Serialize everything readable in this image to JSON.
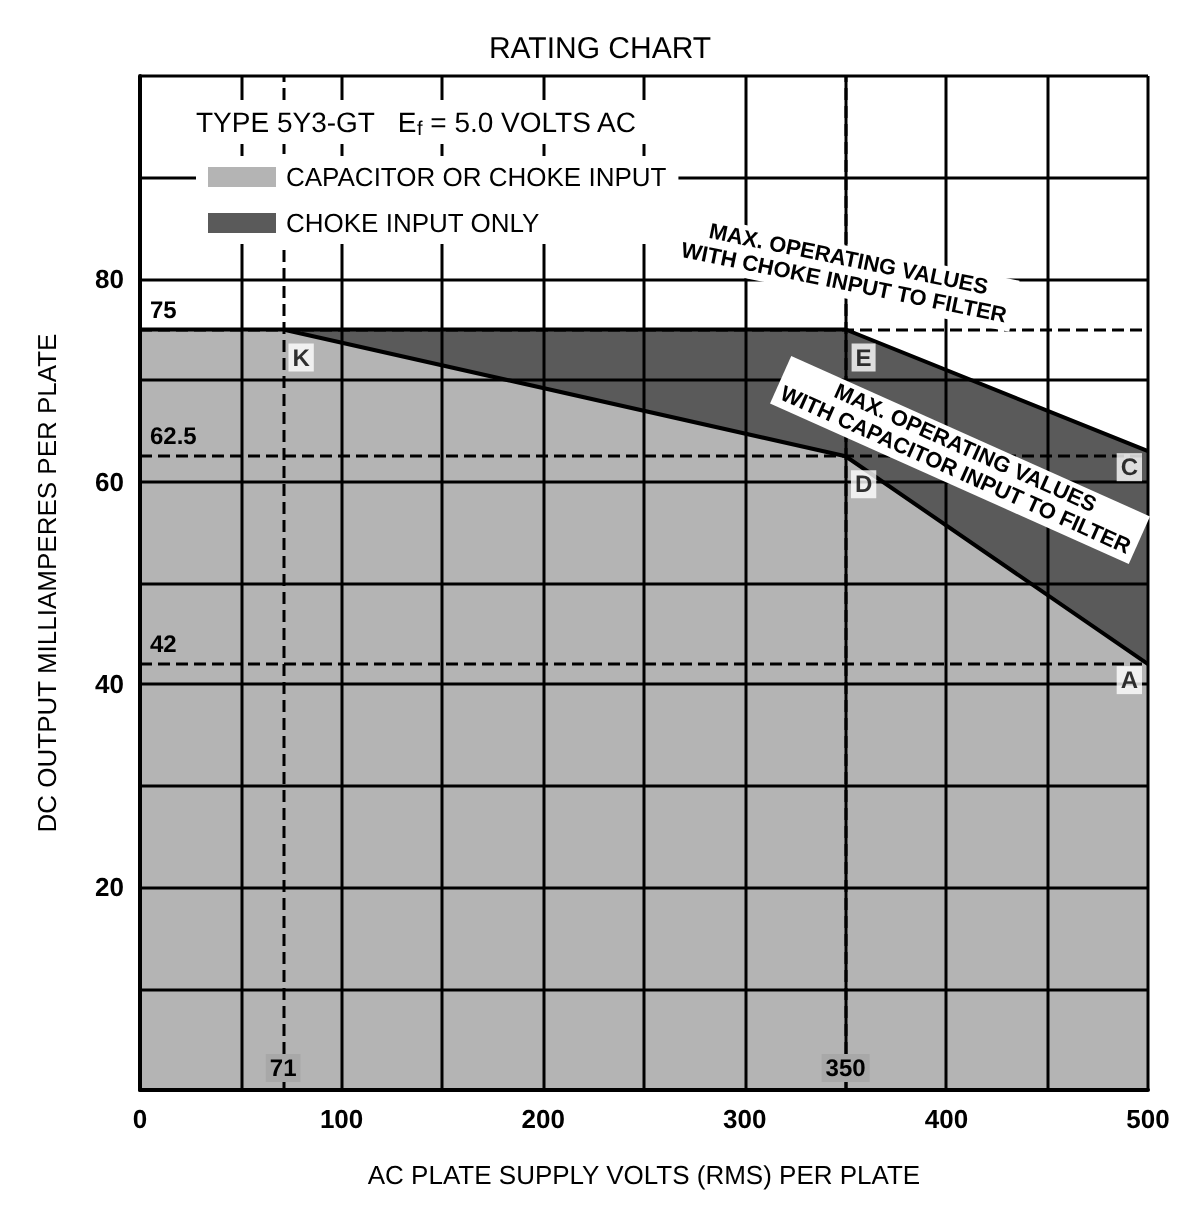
{
  "chart_data": {
    "type": "area",
    "title": "RATING CHART",
    "xlabel": "AC PLATE SUPPLY VOLTS (RMS) PER PLATE",
    "ylabel": "DC OUTPUT MILLIAMPERES PER PLATE",
    "legend_title": "TYPE 5Y3-GT   E$_{f}$ = 5.0 VOLTS AC",
    "series": [
      {
        "name": "CHOKE INPUT ONLY",
        "color": "#5a5a5a",
        "x": [
          71,
          350,
          500
        ],
        "values": [
          75,
          75,
          63
        ]
      },
      {
        "name": "CAPACITOR OR CHOKE INPUT",
        "color": "#b4b4b4",
        "x": [
          0,
          71,
          350,
          500
        ],
        "values": [
          75,
          75,
          62.5,
          42
        ]
      }
    ],
    "xlim": [
      0,
      500
    ],
    "xticks": [
      {
        "value": 0,
        "label": "0"
      },
      {
        "value": 50,
        "label": null
      },
      100,
      {
        "value": 150,
        "label": null
      },
      200,
      {
        "value": 250,
        "label": null
      },
      300,
      {
        "value": 350,
        "label": null
      },
      400,
      {
        "value": 450,
        "label": null
      },
      500
    ],
    "ylim": [
      0,
      100
    ],
    "yticks": [
      {
        "value": 0,
        "label": null
      },
      {
        "value": 10,
        "label": null
      },
      20,
      {
        "value": 30,
        "label": null
      },
      40,
      {
        "value": 50,
        "label": null
      },
      60,
      {
        "value": 70,
        "label": null
      },
      80,
      {
        "value": 90,
        "label": null
      },
      {
        "value": 100,
        "label": null
      }
    ],
    "ref_lines": [
      {
        "axis": "y",
        "value": 75,
        "label": "75",
        "line_style": "dashed"
      },
      {
        "axis": "y",
        "value": 62.5,
        "label": "62.5",
        "line_style": "dashed"
      },
      {
        "axis": "y",
        "value": 42,
        "label": "42",
        "line_style": "dashed"
      },
      {
        "axis": "x",
        "value": 71,
        "label": "71",
        "line_style": "dashed"
      },
      {
        "axis": "x",
        "value": 350,
        "label": "350",
        "line_style": "dashed"
      }
    ],
    "annotations": [
      {
        "text": "K",
        "x": 71,
        "y": 75
      },
      {
        "text": "E",
        "x": 350,
        "y": 75
      },
      {
        "text": "D",
        "x": 350,
        "y": 62.5
      },
      {
        "text": "C",
        "x": 500,
        "y": 63
      },
      {
        "text": "A",
        "x": 500,
        "y": 42
      },
      "MAX. OPERATING VALUES\nWITH CHOKE INPUT TO FILTER",
      "MAX. OPERATING VALUES\nWITH CAPACITOR INPUT TO FILTER"
    ],
    "grid": true,
    "legend": "top left",
    "marker": "none",
    "line_style": "solid"
  }
}
